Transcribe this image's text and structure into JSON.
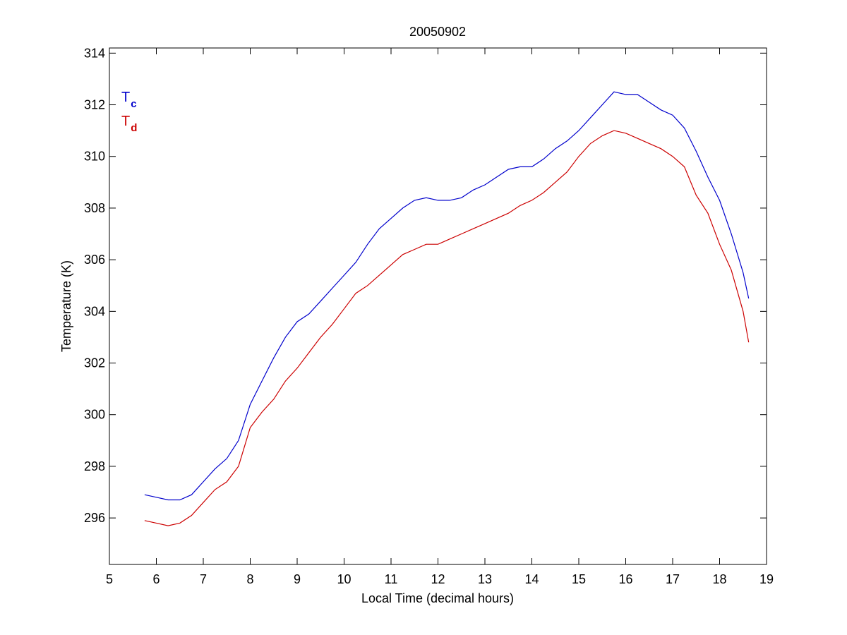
{
  "chart_data": {
    "type": "line",
    "title": "20050902",
    "xlabel": "Local Time (decimal hours)",
    "ylabel": "Temperature (K)",
    "xlim": [
      5,
      19
    ],
    "ylim": [
      294.2,
      314.2
    ],
    "xticks": [
      5,
      6,
      7,
      8,
      9,
      10,
      11,
      12,
      13,
      14,
      15,
      16,
      17,
      18,
      19
    ],
    "yticks": [
      296,
      298,
      300,
      302,
      304,
      306,
      308,
      310,
      312,
      314
    ],
    "grid": false,
    "legend_position": "top-left",
    "series": [
      {
        "name": "T",
        "subscript": "c",
        "color": "#0000cc",
        "x": [
          5.75,
          6.0,
          6.25,
          6.5,
          6.75,
          7.0,
          7.25,
          7.5,
          7.75,
          8.0,
          8.25,
          8.5,
          8.75,
          9.0,
          9.25,
          9.5,
          9.75,
          10.0,
          10.25,
          10.5,
          10.75,
          11.0,
          11.25,
          11.5,
          11.75,
          12.0,
          12.25,
          12.5,
          12.75,
          13.0,
          13.25,
          13.5,
          13.75,
          14.0,
          14.25,
          14.5,
          14.75,
          15.0,
          15.25,
          15.5,
          15.75,
          16.0,
          16.25,
          16.5,
          16.75,
          17.0,
          17.25,
          17.5,
          17.75,
          18.0,
          18.25,
          18.5,
          18.62
        ],
        "y": [
          296.9,
          296.8,
          296.7,
          296.7,
          296.9,
          297.4,
          297.9,
          298.3,
          299.0,
          300.4,
          301.3,
          302.2,
          303.0,
          303.6,
          303.9,
          304.4,
          304.9,
          305.4,
          305.9,
          306.6,
          307.2,
          307.6,
          308.0,
          308.3,
          308.4,
          308.3,
          308.3,
          308.4,
          308.7,
          308.9,
          309.2,
          309.5,
          309.6,
          309.6,
          309.9,
          310.3,
          310.6,
          311.0,
          311.5,
          312.0,
          312.5,
          312.4,
          312.4,
          312.1,
          311.8,
          311.6,
          311.1,
          310.2,
          309.2,
          308.3,
          307.0,
          305.5,
          304.5
        ]
      },
      {
        "name": "T",
        "subscript": "d",
        "color": "#cc0000",
        "x": [
          5.75,
          6.0,
          6.25,
          6.5,
          6.75,
          7.0,
          7.25,
          7.5,
          7.75,
          8.0,
          8.25,
          8.5,
          8.75,
          9.0,
          9.25,
          9.5,
          9.75,
          10.0,
          10.25,
          10.5,
          10.75,
          11.0,
          11.25,
          11.5,
          11.75,
          12.0,
          12.25,
          12.5,
          12.75,
          13.0,
          13.25,
          13.5,
          13.75,
          14.0,
          14.25,
          14.5,
          14.75,
          15.0,
          15.25,
          15.5,
          15.75,
          16.0,
          16.25,
          16.5,
          16.75,
          17.0,
          17.25,
          17.5,
          17.75,
          18.0,
          18.25,
          18.5,
          18.62
        ],
        "y": [
          295.9,
          295.8,
          295.7,
          295.8,
          296.1,
          296.6,
          297.1,
          297.4,
          298.0,
          299.5,
          300.1,
          300.6,
          301.3,
          301.8,
          302.4,
          303.0,
          303.5,
          304.1,
          304.7,
          305.0,
          305.4,
          305.8,
          306.2,
          306.4,
          306.6,
          306.6,
          306.8,
          307.0,
          307.2,
          307.4,
          307.6,
          307.8,
          308.1,
          308.3,
          308.6,
          309.0,
          309.4,
          310.0,
          310.5,
          310.8,
          311.0,
          310.9,
          310.7,
          310.5,
          310.3,
          310.0,
          309.6,
          308.5,
          307.8,
          306.6,
          305.6,
          304.0,
          302.8
        ]
      }
    ]
  }
}
